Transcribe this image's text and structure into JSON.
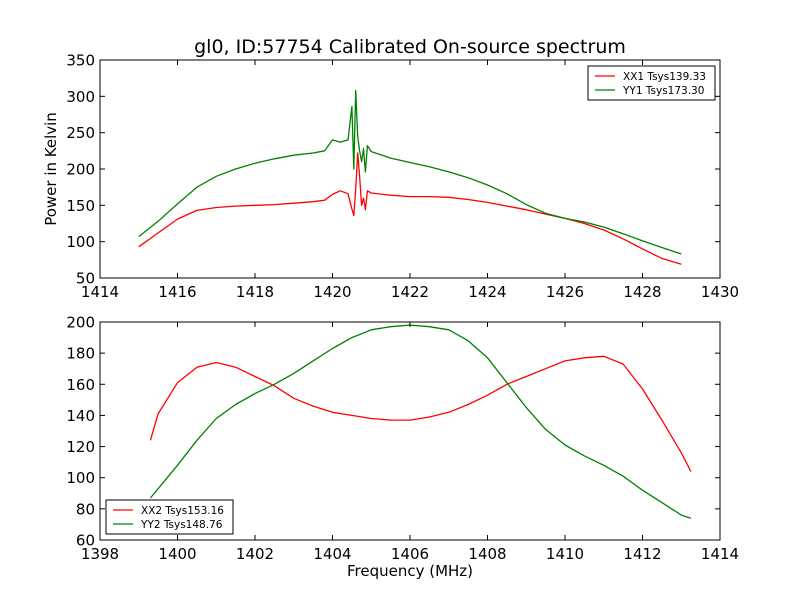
{
  "chart_data": [
    {
      "type": "line",
      "title": "gl0, ID:57754 Calibrated On-source spectrum",
      "xlabel": "",
      "ylabel": "Power in Kelvin",
      "xlim": [
        1414,
        1430
      ],
      "ylim": [
        50,
        350
      ],
      "xticks": [
        1414,
        1416,
        1418,
        1420,
        1422,
        1424,
        1426,
        1428,
        1430
      ],
      "yticks": [
        50,
        100,
        150,
        200,
        250,
        300,
        350
      ],
      "legend_position": "top-right",
      "series": [
        {
          "name": "XX1 Tsys139.33",
          "color": "#ff0000",
          "x": [
            1415.0,
            1415.5,
            1416.0,
            1416.5,
            1417.0,
            1417.5,
            1418.0,
            1418.5,
            1419.0,
            1419.5,
            1419.8,
            1420.0,
            1420.2,
            1420.4,
            1420.5,
            1420.55,
            1420.6,
            1420.65,
            1420.7,
            1420.75,
            1420.8,
            1420.85,
            1420.9,
            1421.0,
            1421.5,
            1422.0,
            1422.5,
            1423.0,
            1423.5,
            1424.0,
            1424.5,
            1425.0,
            1425.5,
            1426.0,
            1426.5,
            1427.0,
            1427.5,
            1428.0,
            1428.5,
            1429.0
          ],
          "values": [
            93,
            112,
            131,
            143,
            147,
            149,
            150,
            151,
            153,
            155,
            157,
            165,
            170,
            166,
            145,
            136,
            172,
            222,
            190,
            150,
            160,
            144,
            170,
            167,
            164,
            162,
            162,
            161,
            158,
            154,
            149,
            144,
            138,
            132,
            125,
            116,
            104,
            90,
            77,
            69
          ]
        },
        {
          "name": "YY1 Tsys173.30",
          "color": "#008000",
          "x": [
            1415.0,
            1415.5,
            1416.0,
            1416.5,
            1417.0,
            1417.5,
            1418.0,
            1418.5,
            1419.0,
            1419.5,
            1419.8,
            1420.0,
            1420.2,
            1420.4,
            1420.5,
            1420.55,
            1420.6,
            1420.65,
            1420.7,
            1420.75,
            1420.8,
            1420.85,
            1420.9,
            1421.0,
            1421.5,
            1422.0,
            1422.5,
            1423.0,
            1423.5,
            1424.0,
            1424.5,
            1425.0,
            1425.5,
            1426.0,
            1426.5,
            1427.0,
            1427.5,
            1428.0,
            1428.5,
            1429.0
          ],
          "values": [
            107,
            128,
            152,
            175,
            190,
            200,
            208,
            214,
            219,
            222,
            225,
            240,
            237,
            240,
            286,
            200,
            308,
            245,
            225,
            210,
            228,
            196,
            232,
            224,
            215,
            209,
            203,
            196,
            188,
            178,
            166,
            151,
            139,
            132,
            127,
            120,
            111,
            101,
            92,
            83
          ]
        }
      ]
    },
    {
      "type": "line",
      "title": "",
      "xlabel": "Frequency (MHz)",
      "ylabel": "",
      "xlim": [
        1398,
        1414
      ],
      "ylim": [
        60,
        200
      ],
      "xticks": [
        1398,
        1400,
        1402,
        1404,
        1406,
        1408,
        1410,
        1412,
        1414
      ],
      "yticks": [
        60,
        80,
        100,
        120,
        140,
        160,
        180,
        200
      ],
      "legend_position": "bottom-left",
      "series": [
        {
          "name": "XX2 Tsys153.16",
          "color": "#ff0000",
          "x": [
            1399.3,
            1399.5,
            1400.0,
            1400.5,
            1401.0,
            1401.5,
            1402.0,
            1402.5,
            1403.0,
            1403.5,
            1404.0,
            1404.5,
            1405.0,
            1405.5,
            1406.0,
            1406.5,
            1407.0,
            1407.5,
            1408.0,
            1408.5,
            1409.0,
            1409.5,
            1410.0,
            1410.5,
            1411.0,
            1411.5,
            1412.0,
            1412.5,
            1413.0,
            1413.25
          ],
          "values": [
            124,
            141,
            161,
            171,
            174,
            171,
            165,
            159,
            151,
            146,
            142,
            140,
            138,
            137,
            137,
            139,
            142,
            147,
            153,
            160,
            165,
            170,
            175,
            177,
            178,
            173,
            157,
            137,
            116,
            104
          ]
        },
        {
          "name": "YY2 Tsys148.76",
          "color": "#008000",
          "x": [
            1399.3,
            1400.0,
            1400.5,
            1401.0,
            1401.5,
            1402.0,
            1402.5,
            1403.0,
            1403.5,
            1404.0,
            1404.5,
            1405.0,
            1405.5,
            1406.0,
            1406.5,
            1407.0,
            1407.5,
            1408.0,
            1408.5,
            1409.0,
            1409.5,
            1410.0,
            1410.5,
            1411.0,
            1411.5,
            1412.0,
            1412.5,
            1413.0,
            1413.25
          ],
          "values": [
            87,
            108,
            124,
            138,
            147,
            154,
            160,
            167,
            175,
            183,
            190,
            195,
            197,
            198,
            197,
            195,
            188,
            177,
            161,
            145,
            131,
            121,
            114,
            108,
            101,
            92,
            84,
            76,
            74
          ]
        }
      ]
    }
  ]
}
